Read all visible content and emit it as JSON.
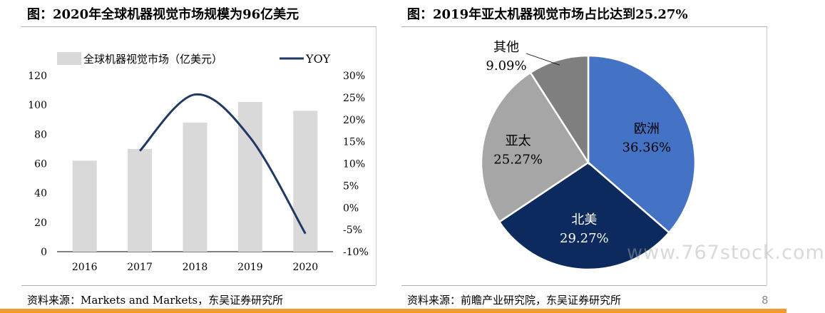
{
  "left_panel": {
    "title": "图：2020年全球机器视觉市场规模为96亿美元",
    "source": "资料来源：Markets and Markets，东吴证券研究所"
  },
  "right_panel": {
    "title": "图：2019年亚太机器视觉市场占比达到25.27%",
    "source": "资料来源：前瞻产业研究院，东吴证券研究所"
  },
  "page_number": "8",
  "watermark": "www.767stock.com",
  "chart_data": [
    {
      "type": "bar",
      "categories": [
        "2016",
        "2017",
        "2018",
        "2019",
        "2020"
      ],
      "series": [
        {
          "name": "全球机器视觉市场（亿美元）",
          "type": "bar",
          "axis": "left",
          "values": [
            62,
            70,
            88,
            102,
            96
          ],
          "color": "#d9d9d9"
        },
        {
          "name": "YOY",
          "type": "line",
          "axis": "right",
          "values": [
            null,
            12.9,
            25.7,
            15.9,
            -5.9
          ],
          "color": "#1f3864"
        }
      ],
      "ylim_left": [
        0,
        120
      ],
      "yticks_left": [
        "0",
        "20",
        "40",
        "60",
        "80",
        "100",
        "120"
      ],
      "ylim_right": [
        -10,
        30
      ],
      "yticks_right": [
        "-10%",
        "-5%",
        "0%",
        "5%",
        "10%",
        "15%",
        "20%",
        "25%",
        "30%"
      ],
      "legend_position": "top",
      "grid": false
    },
    {
      "type": "pie",
      "slices": [
        {
          "label": "欧洲",
          "value": 36.36,
          "display": "36.36%",
          "color": "#4472c4",
          "text_color": "#000000"
        },
        {
          "label": "北美",
          "value": 29.27,
          "display": "29.27%",
          "color": "#0d2a5e",
          "text_color": "#ffffff"
        },
        {
          "label": "亚太",
          "value": 25.27,
          "display": "25.27%",
          "color": "#a6a6a6",
          "text_color": "#000000"
        },
        {
          "label": "其他",
          "value": 9.09,
          "display": "9.09%",
          "color": "#7f7f7f",
          "text_color": "#000000"
        }
      ],
      "start_angle_deg": 0,
      "direction": "clockwise"
    }
  ]
}
